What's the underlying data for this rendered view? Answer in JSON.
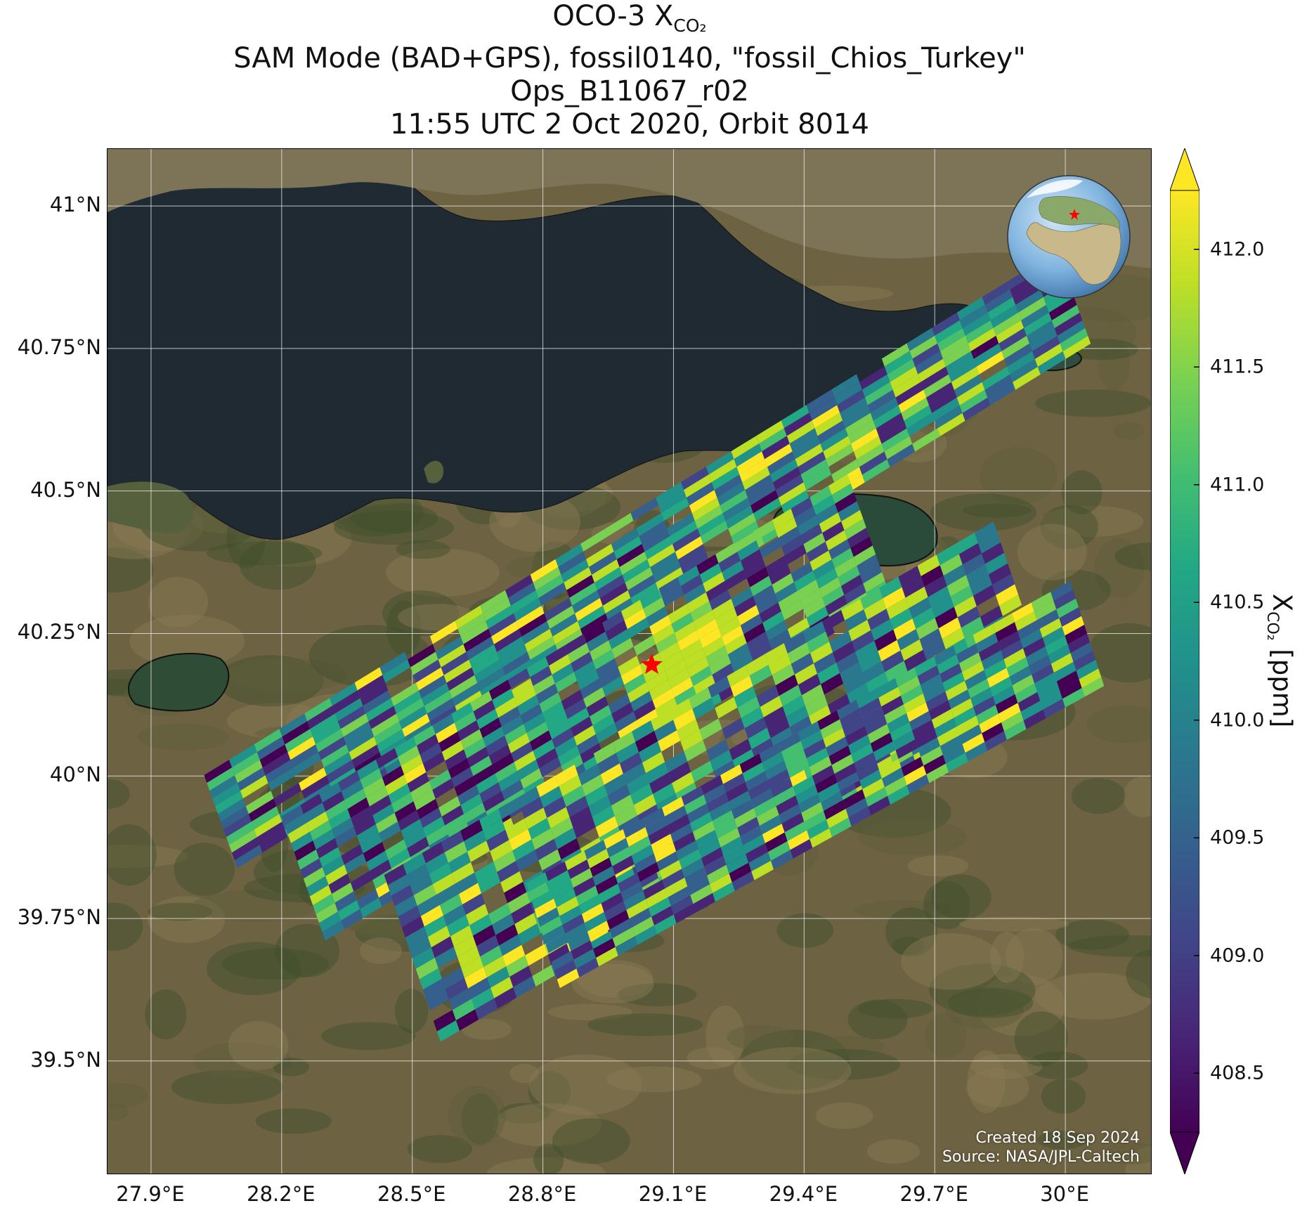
{
  "title": {
    "line1_prefix": "OCO-3 X",
    "line1_sub": "CO₂",
    "line2": "SAM Mode (BAD+GPS), fossil0140, \"fossil_Chios_Turkey\"",
    "line3": "Ops_B11067_r02",
    "line4": "11:55 UTC 2 Oct 2020, Orbit 8014"
  },
  "credit": {
    "created": "Created 18 Sep 2024",
    "source": "Source: NASA/JPL-Caltech"
  },
  "lat_ticks": [
    "41°N",
    "40.75°N",
    "40.5°N",
    "40.25°N",
    "40°N",
    "39.75°N",
    "39.5°N"
  ],
  "lon_ticks": [
    "27.9°E",
    "28.2°E",
    "28.5°E",
    "28.8°E",
    "29.1°E",
    "29.4°E",
    "29.7°E",
    "30°E"
  ],
  "colorbar": {
    "label_prefix": "X",
    "label_sub": "CO₂",
    "label_suffix": " [ppm]",
    "ticks": [
      "408.5",
      "409.0",
      "409.5",
      "410.0",
      "410.5",
      "411.0",
      "411.5",
      "412.0"
    ],
    "range": [
      408.25,
      412.25
    ],
    "extend": "both",
    "colormap": "viridis"
  },
  "map": {
    "lon_range": [
      27.8,
      30.2
    ],
    "lat_range": [
      39.3,
      41.1
    ],
    "target_marker": {
      "lon": 29.05,
      "lat": 40.195,
      "color": "#ff0000"
    },
    "inset_globe": "globe-with-target-star"
  },
  "chart_data": {
    "type": "heatmap",
    "variable": "XCO2",
    "units": "ppm",
    "sounding_seed": 20201002,
    "swaths": [
      {
        "start": [
          28.06,
          39.92
        ],
        "end": [
          30.02,
          40.84
        ],
        "width_deg": 0.09,
        "rows": 12,
        "cols": 34,
        "seed": 11
      },
      {
        "start": [
          28.25,
          39.82
        ],
        "end": [
          29.55,
          40.42
        ],
        "width_deg": 0.12,
        "rows": 14,
        "cols": 30,
        "seed": 23
      },
      {
        "start": [
          28.5,
          39.68
        ],
        "end": [
          29.9,
          40.3
        ],
        "width_deg": 0.16,
        "rows": 16,
        "cols": 32,
        "seed": 37
      },
      {
        "start": [
          28.8,
          39.72
        ],
        "end": [
          30.05,
          40.25
        ],
        "width_deg": 0.1,
        "rows": 12,
        "cols": 28,
        "seed": 41
      }
    ],
    "enhancement": {
      "lon": 29.12,
      "lat": 40.17,
      "radius_deg": 0.14,
      "value": 412.2
    }
  }
}
